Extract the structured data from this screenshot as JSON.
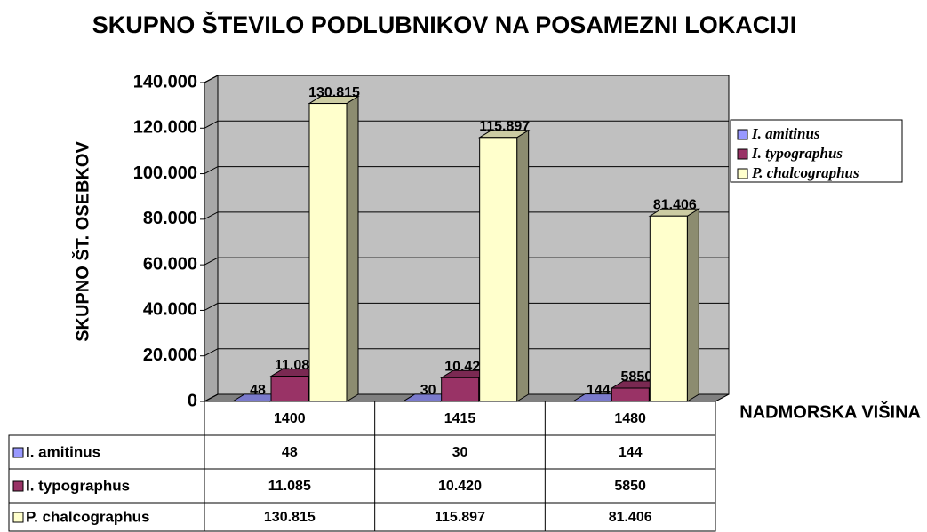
{
  "chart_data": {
    "type": "bar3d",
    "title": "SKUPNO ŠTEVILO PODLUBNIKOV NA POSAMEZNI LOKACIJI",
    "y_label": "SKUPNO ŠT. OSEBKOV",
    "x_label": "NADMORSKA VIŠINA",
    "categories": [
      "1400",
      "1415",
      "1480"
    ],
    "series": [
      {
        "name": "I. amitinus",
        "color": "#9999ff",
        "values": [
          48,
          30,
          144
        ],
        "value_labels": [
          "48",
          "30",
          "144"
        ]
      },
      {
        "name": "I. typographus",
        "color": "#993366",
        "values": [
          11085,
          10420,
          5850
        ],
        "value_labels": [
          "11.085",
          "10.420",
          "5850"
        ]
      },
      {
        "name": "P. chalcographus",
        "color": "#ffffcc",
        "values": [
          130815,
          115897,
          81406
        ],
        "value_labels": [
          "130.815",
          "115.897",
          "81.406"
        ]
      }
    ],
    "ylim": [
      0,
      140000
    ],
    "yticks": [
      0,
      {
        "value": 20000,
        "label": "20.000"
      },
      {
        "value": 40000,
        "label": "40.000"
      },
      {
        "value": 60000,
        "label": "60.000"
      },
      {
        "value": 80000,
        "label": "80.000"
      },
      {
        "value": 100000,
        "label": "100.000"
      },
      {
        "value": 120000,
        "label": "120.000"
      },
      {
        "value": 140000,
        "label": "140.000"
      }
    ],
    "grid": true,
    "legend": "right",
    "data_table": true
  }
}
